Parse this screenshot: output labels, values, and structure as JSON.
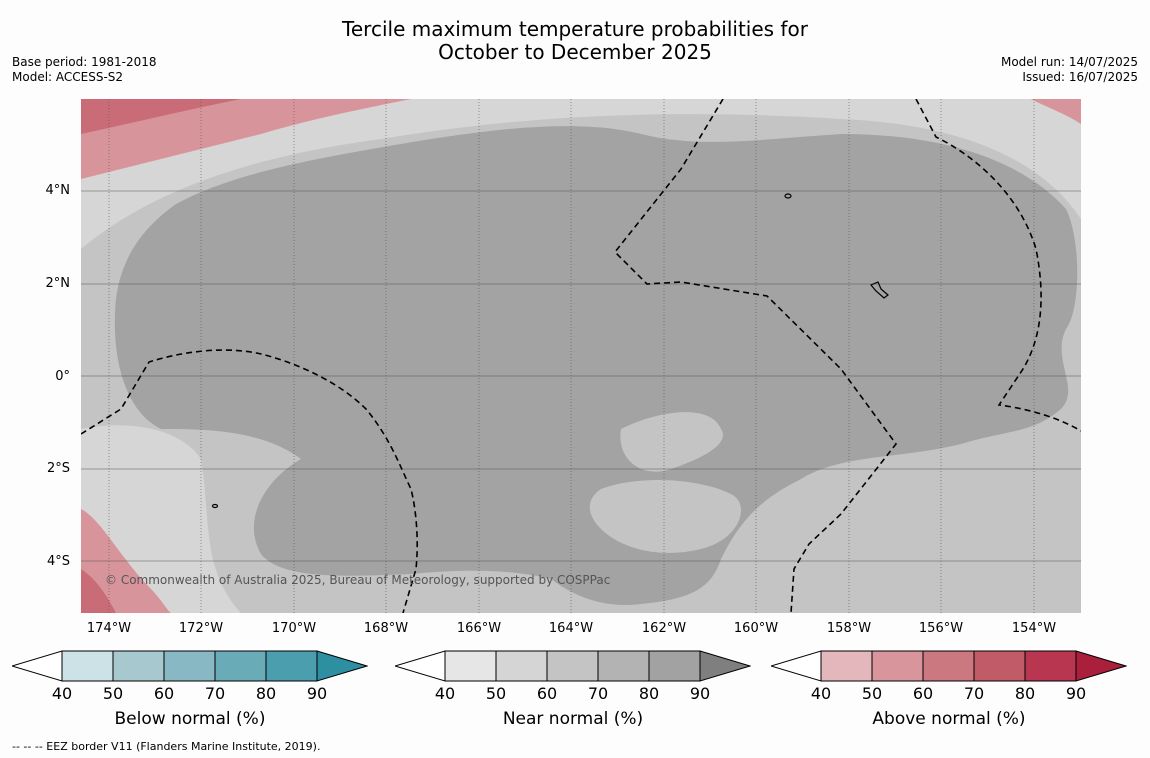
{
  "header": {
    "title_line1": "Tercile maximum temperature probabilities for",
    "title_line2": "October to December 2025",
    "base_period": "Base period: 1981-2018",
    "model": "Model: ACCESS-S2",
    "model_run": "Model run: 14/07/2025",
    "issued": "Issued: 16/07/2025"
  },
  "map": {
    "lat_labels": [
      "4°N",
      "2°N",
      "0°",
      "2°S",
      "4°S"
    ],
    "lon_labels": [
      "174°W",
      "172°W",
      "170°W",
      "168°W",
      "166°W",
      "164°W",
      "162°W",
      "160°W",
      "158°W",
      "156°W",
      "154°W"
    ],
    "copyright": "© Commonwealth of Australia 2025, Bureau of Meteorology, supported by COSPPac",
    "colors": {
      "near_light": "#d6d6d6",
      "near_mid": "#c4c4c4",
      "near_dark": "#a3a3a3",
      "above_50": "#d7959b",
      "above_60": "#c96c77",
      "below_50": "#a9c8cf"
    }
  },
  "legends": [
    {
      "label": "Below normal (%)",
      "colors": [
        "#cce2e7",
        "#a7c8ce",
        "#88b8c3",
        "#6aabb8",
        "#4a9eae"
      ],
      "end_color": "#2e8fa3",
      "ticks": [
        "40",
        "50",
        "60",
        "70",
        "80",
        "90"
      ]
    },
    {
      "label": "Near normal (%)",
      "colors": [
        "#e6e6e6",
        "#d5d5d5",
        "#c4c4c4",
        "#b3b3b3",
        "#a2a2a2"
      ],
      "end_color": "#7f7f7f",
      "ticks": [
        "40",
        "50",
        "60",
        "70",
        "80",
        "90"
      ]
    },
    {
      "label": "Above normal (%)",
      "colors": [
        "#e3b7bc",
        "#d8959c",
        "#cb7880",
        "#c25b68",
        "#b83650"
      ],
      "end_color": "#aa1f3b",
      "ticks": [
        "40",
        "50",
        "60",
        "70",
        "80",
        "90"
      ]
    }
  ],
  "footer": "--  --  -- EEZ border V11 (Flanders Marine Institute, 2019)."
}
